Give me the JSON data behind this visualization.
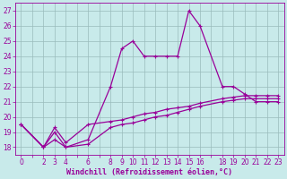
{
  "xlabel": "Windchill (Refroidissement éolien,°C)",
  "bg_color": "#c8eaea",
  "line_color": "#990099",
  "grid_color": "#99bbbb",
  "ylim": [
    17.5,
    27.5
  ],
  "yticks": [
    18,
    19,
    20,
    21,
    22,
    23,
    24,
    25,
    26,
    27
  ],
  "xtick_labels": [
    0,
    2,
    3,
    4,
    6,
    8,
    9,
    10,
    11,
    12,
    13,
    14,
    15,
    16,
    18,
    19,
    20,
    21,
    22,
    23
  ],
  "xlim": [
    -0.5,
    23.5
  ],
  "line1_x": [
    0,
    2,
    3,
    4,
    6,
    8,
    9,
    10,
    11,
    12,
    13,
    14,
    15,
    16,
    18,
    19,
    20,
    21,
    22,
    23
  ],
  "line1_y": [
    19.5,
    18.0,
    19.0,
    18.0,
    18.5,
    22.0,
    24.5,
    25.0,
    24.0,
    24.0,
    24.0,
    24.0,
    27.0,
    26.0,
    22.0,
    22.0,
    21.5,
    21.0,
    21.0,
    21.0
  ],
  "line2_x": [
    0,
    2,
    3,
    4,
    6,
    8,
    9,
    10,
    11,
    12,
    13,
    14,
    15,
    16,
    18,
    19,
    20,
    21,
    22,
    23
  ],
  "line2_y": [
    19.5,
    18.0,
    19.3,
    18.3,
    19.5,
    19.7,
    19.8,
    20.0,
    20.2,
    20.3,
    20.5,
    20.6,
    20.7,
    20.9,
    21.2,
    21.3,
    21.4,
    21.4,
    21.4,
    21.4
  ],
  "line3_x": [
    0,
    2,
    3,
    4,
    6,
    8,
    9,
    10,
    11,
    12,
    13,
    14,
    15,
    16,
    18,
    19,
    20,
    21,
    22,
    23
  ],
  "line3_y": [
    19.5,
    18.0,
    18.5,
    18.0,
    18.2,
    19.3,
    19.5,
    19.6,
    19.8,
    20.0,
    20.1,
    20.3,
    20.5,
    20.7,
    21.0,
    21.1,
    21.2,
    21.2,
    21.2,
    21.2
  ],
  "marker": "+",
  "linewidth": 0.9,
  "markersize": 3
}
